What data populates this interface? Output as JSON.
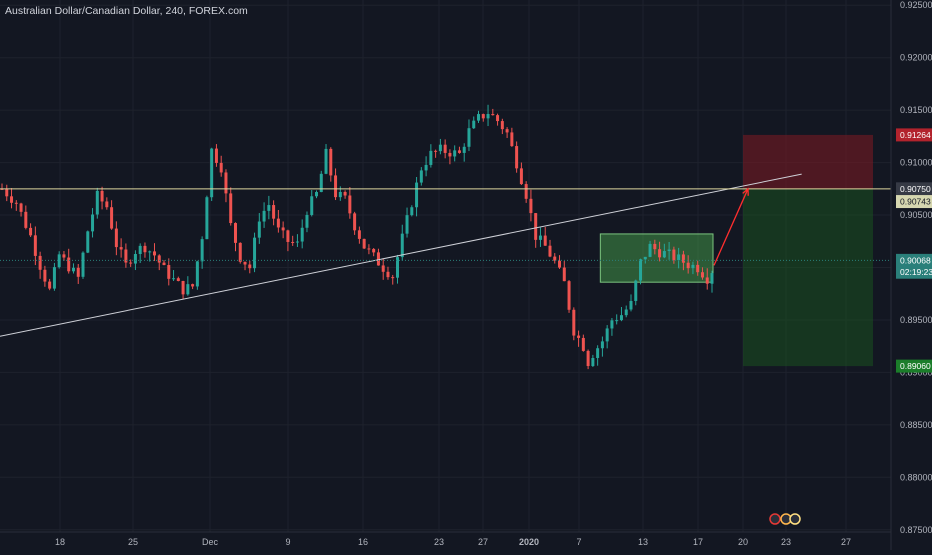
{
  "chart_title": "Australian Dollar/Canadian Dollar, 240, FOREX.com",
  "colors": {
    "background": "#131722",
    "grid": "#1e222d",
    "axis_text": "#b2b5be",
    "up_candle": "#26a69a",
    "down_candle": "#ef5350",
    "resistance_line": "#ded79f",
    "trend_line": "#cfd1d8",
    "projection_arrow": "#ff2e2e",
    "range_box_fill": "#4caf50",
    "stop_zone": "#801922",
    "target_zone": "#1b5e20",
    "current_price_line": "#2a7f7a"
  },
  "chart_data": {
    "type": "candlestick",
    "x_ticks": [
      "18",
      "25",
      "Dec",
      "9",
      "16",
      "23",
      "27",
      "2020",
      "7",
      "13",
      "17",
      "20",
      "23",
      "27"
    ],
    "y_ticks": [
      "0.92500",
      "0.92000",
      "0.91500",
      "0.91000",
      "0.90500",
      "0.90000",
      "0.89500",
      "0.89000",
      "0.88500",
      "0.88000",
      "0.87500"
    ],
    "ylim": [
      0.8745,
      0.9255
    ],
    "grid": true,
    "price_labels": [
      {
        "name": "stop-price",
        "text": "0.91264",
        "value": 0.91264,
        "color": "#b2232d"
      },
      {
        "name": "resistance-price",
        "text": "0.90750",
        "value": 0.9075,
        "color": "#363a45"
      },
      {
        "name": "entry-price",
        "text": "0.90743",
        "value": 0.90743,
        "color": "#d6d7b0"
      },
      {
        "name": "last-price",
        "text": "0.90068",
        "value": 0.90068,
        "color": "#2a7f7a"
      },
      {
        "name": "countdown",
        "text": "02:19:23",
        "value": 0.89955,
        "color": "#2a7f7a"
      },
      {
        "name": "target-price",
        "text": "0.89060",
        "value": 0.8906,
        "color": "#1b7d2a"
      }
    ],
    "trend_line": {
      "x_dates": [
        "Nov 12",
        "Jan 22"
      ],
      "y": [
        0.89345,
        0.9089
      ]
    },
    "resistance_level": 0.9075,
    "consolidation_box": {
      "x_dates": [
        "Jan 9",
        "Jan 18"
      ],
      "y": [
        0.8986,
        0.9032
      ]
    },
    "stop_zone": {
      "x_dates": [
        "Jan 20",
        "Jan 29"
      ],
      "y": [
        0.9075,
        0.91264
      ]
    },
    "target_zone": {
      "x_dates": [
        "Jan 20",
        "Jan 29"
      ],
      "y": [
        0.8906,
        0.9075
      ]
    },
    "projection_arrow": {
      "x_dates": [
        "Jan 17",
        "Jan 19"
      ],
      "y": [
        0.9002,
        0.9075
      ]
    },
    "close_path_anchors": [
      [
        0,
        0.9075
      ],
      [
        3,
        0.9062
      ],
      [
        6,
        0.903
      ],
      [
        8,
        0.9002
      ],
      [
        10,
        0.8978
      ],
      [
        12,
        0.9012
      ],
      [
        14,
        0.9001
      ],
      [
        16,
        0.899
      ],
      [
        18,
        0.9035
      ],
      [
        20,
        0.9068
      ],
      [
        22,
        0.9058
      ],
      [
        24,
        0.9022
      ],
      [
        26,
        0.9002
      ],
      [
        28,
        0.9016
      ],
      [
        30,
        0.902
      ],
      [
        32,
        0.9012
      ],
      [
        34,
        0.8998
      ],
      [
        36,
        0.8988
      ],
      [
        38,
        0.8979
      ],
      [
        40,
        0.8982
      ],
      [
        42,
        0.903
      ],
      [
        44,
        0.9112
      ],
      [
        46,
        0.9096
      ],
      [
        48,
        0.904
      ],
      [
        50,
        0.901
      ],
      [
        52,
        0.9
      ],
      [
        54,
        0.9048
      ],
      [
        56,
        0.906
      ],
      [
        58,
        0.9035
      ],
      [
        60,
        0.9025
      ],
      [
        62,
        0.9022
      ],
      [
        64,
        0.9055
      ],
      [
        66,
        0.907
      ],
      [
        68,
        0.9108
      ],
      [
        70,
        0.907
      ],
      [
        72,
        0.9065
      ],
      [
        74,
        0.904
      ],
      [
        76,
        0.902
      ],
      [
        78,
        0.901
      ],
      [
        80,
        0.9
      ],
      [
        82,
        0.8992
      ],
      [
        84,
        0.9028
      ],
      [
        86,
        0.9062
      ],
      [
        88,
        0.9095
      ],
      [
        90,
        0.9108
      ],
      [
        92,
        0.9112
      ],
      [
        94,
        0.911
      ],
      [
        96,
        0.9108
      ],
      [
        98,
        0.913
      ],
      [
        100,
        0.9142
      ],
      [
        102,
        0.9148
      ],
      [
        104,
        0.914
      ],
      [
        106,
        0.9128
      ],
      [
        108,
        0.91
      ],
      [
        110,
        0.907
      ],
      [
        112,
        0.903
      ],
      [
        114,
        0.902
      ],
      [
        116,
        0.9005
      ],
      [
        118,
        0.8985
      ],
      [
        120,
        0.894
      ],
      [
        122,
        0.8925
      ],
      [
        123,
        0.891
      ],
      [
        124,
        0.8918
      ],
      [
        126,
        0.893
      ],
      [
        128,
        0.895
      ],
      [
        130,
        0.8955
      ],
      [
        132,
        0.8965
      ],
      [
        134,
        0.9005
      ],
      [
        136,
        0.902
      ],
      [
        138,
        0.9015
      ],
      [
        140,
        0.9012
      ],
      [
        142,
        0.9008
      ],
      [
        144,
        0.9003
      ],
      [
        146,
        0.9
      ],
      [
        148,
        0.899
      ],
      [
        150,
        0.9005
      ]
    ]
  }
}
